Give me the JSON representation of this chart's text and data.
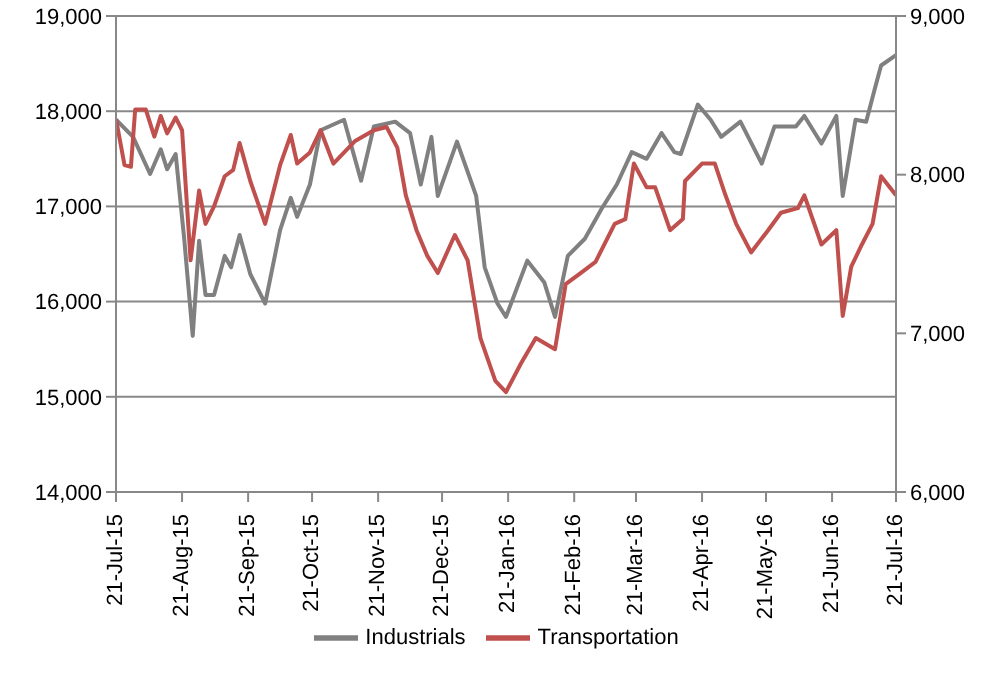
{
  "chart_data": {
    "type": "line",
    "legend": "bottom",
    "grid": "y",
    "marker": "none",
    "line_style": "solid",
    "xlim": [
      "2015-07-21",
      "2016-07-21"
    ],
    "xticks": [
      {
        "value": "2015-07-21",
        "label": "21-Jul-15"
      },
      {
        "value": "2015-08-21",
        "label": "21-Aug-15"
      },
      {
        "value": "2015-09-21",
        "label": "21-Sep-15"
      },
      {
        "value": "2015-10-21",
        "label": "21-Oct-15"
      },
      {
        "value": "2015-11-21",
        "label": "21-Nov-15"
      },
      {
        "value": "2015-12-21",
        "label": "21-Dec-15"
      },
      {
        "value": "2016-01-21",
        "label": "21-Jan-16"
      },
      {
        "value": "2016-02-21",
        "label": "21-Feb-16"
      },
      {
        "value": "2016-03-21",
        "label": "21-Mar-16"
      },
      {
        "value": "2016-04-21",
        "label": "21-Apr-16"
      },
      {
        "value": "2016-05-21",
        "label": "21-May-16"
      },
      {
        "value": "2016-06-21",
        "label": "21-Jun-16"
      },
      {
        "value": "2016-07-21",
        "label": "21-Jul-16"
      }
    ],
    "ylim": [
      14000,
      19000
    ],
    "yticks": [
      {
        "value": 14000,
        "label": "14,000"
      },
      {
        "value": 15000,
        "label": "15,000"
      },
      {
        "value": 16000,
        "label": "16,000"
      },
      {
        "value": 17000,
        "label": "17,000"
      },
      {
        "value": 18000,
        "label": "18,000"
      },
      {
        "value": 19000,
        "label": "19,000"
      }
    ],
    "y2lim": [
      6000,
      9000
    ],
    "y2ticks": [
      {
        "value": 6000,
        "label": "6,000"
      },
      {
        "value": 7000,
        "label": "7,000"
      },
      {
        "value": 8000,
        "label": "8,000"
      },
      {
        "value": 9000,
        "label": "9,000"
      }
    ],
    "series": [
      {
        "name": "Industrials",
        "color": "#808080",
        "x": [
          "2015-07-21",
          "2015-07-29",
          "2015-08-06",
          "2015-08-11",
          "2015-08-14",
          "2015-08-18",
          "2015-08-22",
          "2015-08-26",
          "2015-08-29",
          "2015-09-01",
          "2015-09-05",
          "2015-09-10",
          "2015-09-13",
          "2015-09-17",
          "2015-09-22",
          "2015-09-29",
          "2015-10-06",
          "2015-10-11",
          "2015-10-14",
          "2015-10-20",
          "2015-10-25",
          "2015-11-05",
          "2015-11-13",
          "2015-11-19",
          "2015-11-29",
          "2015-12-06",
          "2015-12-11",
          "2015-12-16",
          "2015-12-19",
          "2015-12-28",
          "2016-01-06",
          "2016-01-10",
          "2016-01-16",
          "2016-01-20",
          "2016-01-30",
          "2016-02-07",
          "2016-02-12",
          "2016-02-18",
          "2016-02-26",
          "2016-03-05",
          "2016-03-12",
          "2016-03-19",
          "2016-03-26",
          "2016-04-02",
          "2016-04-08",
          "2016-04-11",
          "2016-04-19",
          "2016-04-25",
          "2016-04-30",
          "2016-05-09",
          "2016-05-19",
          "2016-05-25",
          "2016-06-04",
          "2016-06-08",
          "2016-06-16",
          "2016-06-23",
          "2016-06-26",
          "2016-07-02",
          "2016-07-07",
          "2016-07-11",
          "2016-07-14",
          "2016-07-21"
        ],
        "values": [
          17910,
          17730,
          17340,
          17600,
          17390,
          17550,
          16660,
          15640,
          16640,
          16070,
          16070,
          16480,
          16360,
          16700,
          16290,
          15980,
          16750,
          17090,
          16890,
          17230,
          17800,
          17910,
          17270,
          17840,
          17890,
          17770,
          17230,
          17730,
          17110,
          17680,
          17110,
          16360,
          15980,
          15840,
          16430,
          16200,
          15840,
          16480,
          16660,
          16980,
          17230,
          17570,
          17500,
          17770,
          17570,
          17550,
          18070,
          17910,
          17730,
          17890,
          17450,
          17840,
          17840,
          17950,
          17660,
          17950,
          17110,
          17910,
          17890,
          18230,
          18480,
          18590
        ]
      },
      {
        "name": "Transportation",
        "color": "#c0504d",
        "axis": "y2",
        "x": [
          "2015-07-21",
          "2015-07-25",
          "2015-07-28",
          "2015-07-30",
          "2015-08-04",
          "2015-08-08",
          "2015-08-11",
          "2015-08-14",
          "2015-08-18",
          "2015-08-21",
          "2015-08-25",
          "2015-08-29",
          "2015-09-01",
          "2015-09-05",
          "2015-09-10",
          "2015-09-14",
          "2015-09-17",
          "2015-09-22",
          "2015-09-29",
          "2015-10-06",
          "2015-10-11",
          "2015-10-14",
          "2015-10-20",
          "2015-10-25",
          "2015-10-31",
          "2015-11-10",
          "2015-11-19",
          "2015-11-25",
          "2015-11-30",
          "2015-12-04",
          "2015-12-09",
          "2015-12-14",
          "2015-12-19",
          "2015-12-27",
          "2016-01-02",
          "2016-01-08",
          "2016-01-15",
          "2016-01-20",
          "2016-01-27",
          "2016-02-03",
          "2016-02-12",
          "2016-02-17",
          "2016-02-24",
          "2016-03-02",
          "2016-03-11",
          "2016-03-16",
          "2016-03-20",
          "2016-03-26",
          "2016-03-30",
          "2016-04-06",
          "2016-04-12",
          "2016-04-13",
          "2016-04-21",
          "2016-04-27",
          "2016-05-02",
          "2016-05-07",
          "2016-05-14",
          "2016-05-22",
          "2016-05-28",
          "2016-06-05",
          "2016-06-08",
          "2016-06-16",
          "2016-06-23",
          "2016-06-26",
          "2016-06-30",
          "2016-07-05",
          "2016-07-10",
          "2016-07-14",
          "2016-07-21"
        ],
        "values": [
          8350,
          8060,
          8050,
          8410,
          8410,
          8240,
          8370,
          8260,
          8360,
          8280,
          7460,
          7900,
          7690,
          7800,
          7990,
          8030,
          8200,
          7960,
          7690,
          8060,
          8250,
          8070,
          8140,
          8280,
          8070,
          8210,
          8280,
          8300,
          8170,
          7870,
          7650,
          7490,
          7380,
          7620,
          7460,
          6970,
          6700,
          6630,
          6810,
          6970,
          6900,
          7310,
          7380,
          7450,
          7690,
          7720,
          8070,
          7920,
          7920,
          7650,
          7720,
          7960,
          8070,
          8070,
          7870,
          7690,
          7510,
          7650,
          7760,
          7790,
          7870,
          7560,
          7650,
          7110,
          7420,
          7560,
          7690,
          7990,
          7870
        ]
      }
    ]
  }
}
